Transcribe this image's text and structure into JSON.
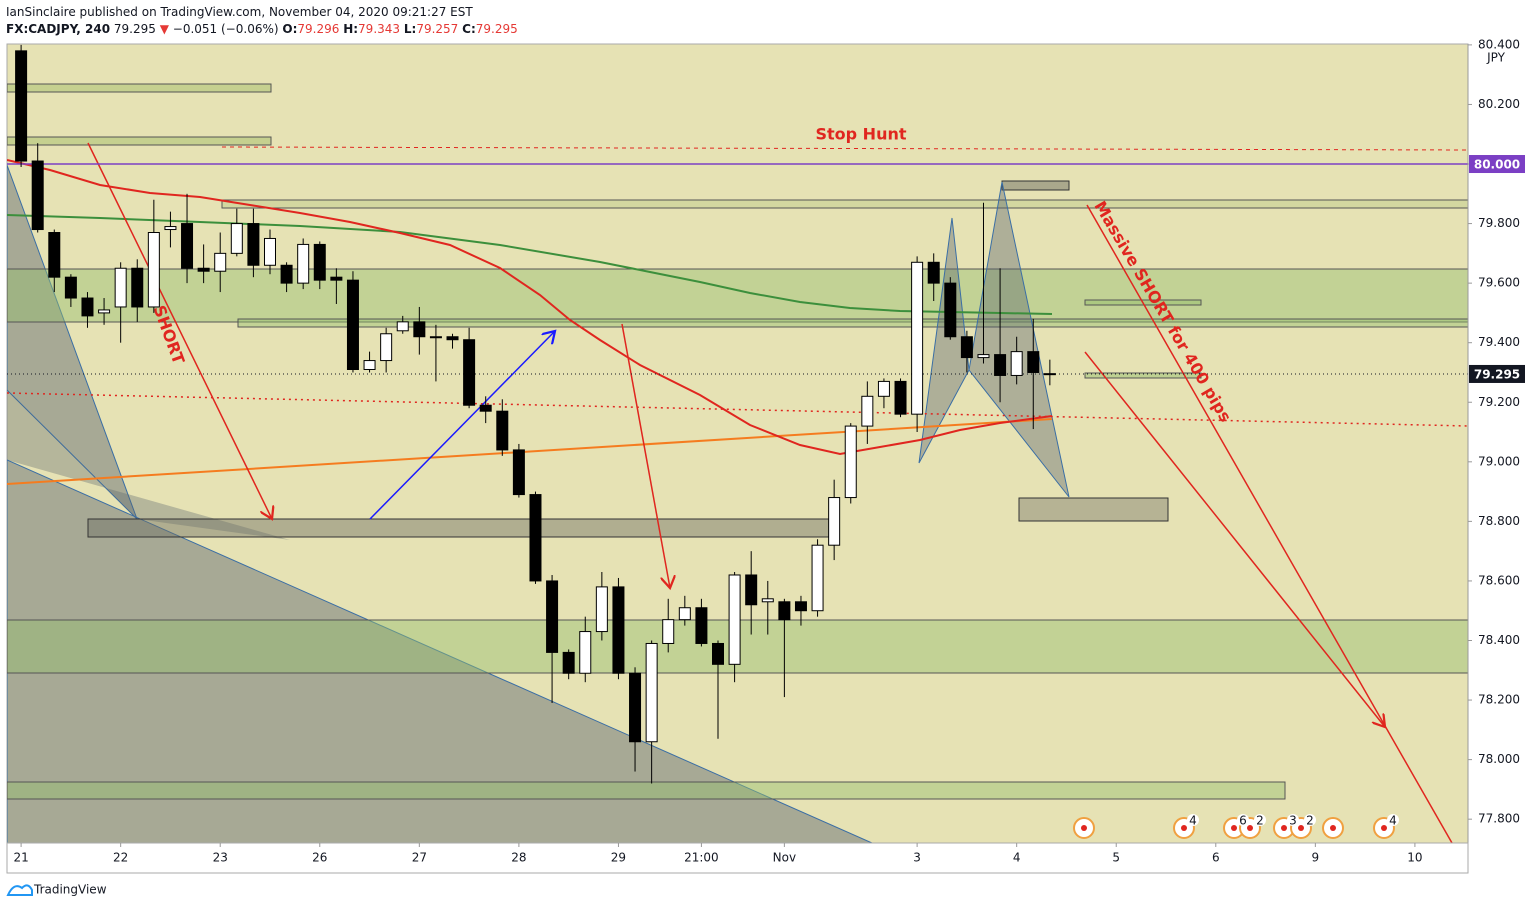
{
  "header": {
    "line1": "IanSinclaire published on TradingView.com, November 04, 2020 09:21:27 EST",
    "symbol": "FX:CADJPY, 240",
    "last": "79.295",
    "arrow": "▼",
    "change": "−0.051 (−0.06%)",
    "o_label": "O:",
    "o": "79.296",
    "h_label": "H:",
    "h": "79.343",
    "l_label": "L:",
    "l": "79.257",
    "c_label": "C:",
    "c": "79.295"
  },
  "chart_data": {
    "type": "candlestick",
    "y_unit": "JPY",
    "open": [
      80.38,
      80.01,
      79.77,
      79.62,
      79.55,
      79.5,
      79.52,
      79.65,
      79.52,
      79.78,
      79.8,
      79.65,
      79.64,
      79.7,
      79.8,
      79.66,
      79.66,
      79.6,
      79.73,
      79.62,
      79.61,
      79.31,
      79.34,
      79.44,
      79.47,
      79.42,
      79.42,
      79.41,
      79.19,
      79.17,
      79.04,
      78.89,
      78.6,
      78.36,
      78.29,
      78.43,
      78.58,
      78.29,
      78.06,
      78.39,
      78.47,
      78.51,
      78.39,
      78.32,
      78.62,
      78.53,
      78.53,
      78.53,
      78.5,
      78.72,
      78.88,
      79.12,
      79.22,
      79.27,
      79.16,
      79.67,
      79.6,
      79.42,
      79.35,
      79.36,
      79.29,
      79.37,
      79.296
    ],
    "high": [
      80.4,
      80.07,
      79.78,
      79.63,
      79.57,
      79.55,
      79.67,
      79.68,
      79.88,
      79.84,
      79.9,
      79.73,
      79.77,
      79.85,
      79.85,
      79.78,
      79.67,
      79.75,
      79.74,
      79.65,
      79.64,
      79.37,
      79.45,
      79.49,
      79.52,
      79.46,
      79.43,
      79.45,
      79.22,
      79.21,
      79.06,
      78.9,
      78.62,
      78.37,
      78.48,
      78.63,
      78.61,
      78.31,
      78.4,
      78.54,
      78.55,
      78.54,
      78.4,
      78.63,
      78.7,
      78.6,
      78.54,
      78.55,
      78.74,
      78.94,
      79.13,
      79.27,
      79.28,
      79.28,
      79.69,
      79.7,
      79.62,
      79.44,
      79.87,
      79.65,
      79.42,
      79.48,
      79.343
    ],
    "low": [
      79.99,
      79.77,
      79.57,
      79.52,
      79.45,
      79.46,
      79.4,
      79.47,
      79.5,
      79.72,
      79.6,
      79.6,
      79.57,
      79.69,
      79.62,
      79.63,
      79.57,
      79.58,
      79.58,
      79.53,
      79.3,
      79.3,
      79.3,
      79.43,
      79.36,
      79.27,
      79.38,
      79.18,
      79.13,
      79.02,
      78.88,
      78.59,
      78.19,
      78.27,
      78.26,
      78.4,
      78.27,
      77.96,
      77.92,
      78.36,
      78.45,
      78.38,
      78.07,
      78.26,
      78.42,
      78.42,
      78.21,
      78.45,
      78.48,
      78.67,
      78.86,
      79.06,
      79.18,
      79.15,
      79.1,
      79.54,
      79.41,
      79.3,
      79.33,
      79.2,
      79.26,
      79.11,
      79.257
    ],
    "close": [
      80.01,
      79.78,
      79.62,
      79.55,
      79.49,
      79.51,
      79.65,
      79.52,
      79.77,
      79.79,
      79.65,
      79.64,
      79.7,
      79.8,
      79.66,
      79.75,
      79.6,
      79.73,
      79.61,
      79.61,
      79.31,
      79.34,
      79.43,
      79.47,
      79.42,
      79.42,
      79.41,
      79.19,
      79.17,
      79.04,
      78.89,
      78.6,
      78.36,
      78.29,
      78.43,
      78.58,
      78.29,
      78.06,
      78.39,
      78.47,
      78.51,
      78.39,
      78.32,
      78.62,
      78.52,
      78.54,
      78.47,
      78.5,
      78.72,
      78.88,
      79.12,
      79.22,
      79.27,
      79.16,
      79.67,
      79.6,
      79.42,
      79.35,
      79.36,
      79.29,
      79.37,
      79.3,
      79.295
    ],
    "up_color": "#ffffff",
    "down_color": "#000000",
    "xlim": [
      -0.85,
      87.2
    ],
    "xticks": [
      {
        "value": 0,
        "label": "21"
      },
      {
        "value": 6,
        "label": "22"
      },
      {
        "value": 12,
        "label": "23"
      },
      {
        "value": 18,
        "label": "26"
      },
      {
        "value": 24,
        "label": "27"
      },
      {
        "value": 30,
        "label": "28"
      },
      {
        "value": 36,
        "label": "29"
      },
      {
        "value": 41,
        "label": "21:00"
      },
      {
        "value": 46,
        "label": "Nov"
      },
      {
        "value": 54,
        "label": "3"
      },
      {
        "value": 60,
        "label": "4"
      },
      {
        "value": 66,
        "label": "5"
      },
      {
        "value": 72,
        "label": "6"
      },
      {
        "value": 78,
        "label": "9"
      },
      {
        "value": 84,
        "label": "10"
      }
    ],
    "ylim": [
      77.72,
      80.403
    ],
    "yticks": [
      {
        "value": 77.8,
        "label": "77.800"
      },
      {
        "value": 78.0,
        "label": "78.000"
      },
      {
        "value": 78.2,
        "label": "78.200"
      },
      {
        "value": 78.4,
        "label": "78.400"
      },
      {
        "value": 78.6,
        "label": "78.600"
      },
      {
        "value": 78.8,
        "label": "78.800"
      },
      {
        "value": 79.0,
        "label": "79.000"
      },
      {
        "value": 79.2,
        "label": "79.200"
      },
      {
        "value": 79.4,
        "label": "79.400"
      },
      {
        "value": 79.6,
        "label": "79.600"
      },
      {
        "value": 79.8,
        "label": "79.800"
      },
      {
        "value": 80.0,
        "label": "80.000"
      },
      {
        "value": 80.2,
        "label": "80.200"
      },
      {
        "value": 80.4,
        "label": "80.400"
      }
    ],
    "grid": false,
    "price_labels": [
      {
        "value": 80.0,
        "label": "80.000",
        "color": "#7b3fc4",
        "line": "solid"
      },
      {
        "value": 79.295,
        "label": "79.295",
        "color": "#131722",
        "line": "dotted"
      }
    ],
    "annotations": [
      "Stop Hunt",
      "SHORT",
      "Massive SHORT for 400 pips"
    ],
    "event_badges": [
      "4",
      "6",
      "2",
      "3",
      "2",
      "4"
    ]
  },
  "footer": {
    "brand": "TradingView"
  }
}
